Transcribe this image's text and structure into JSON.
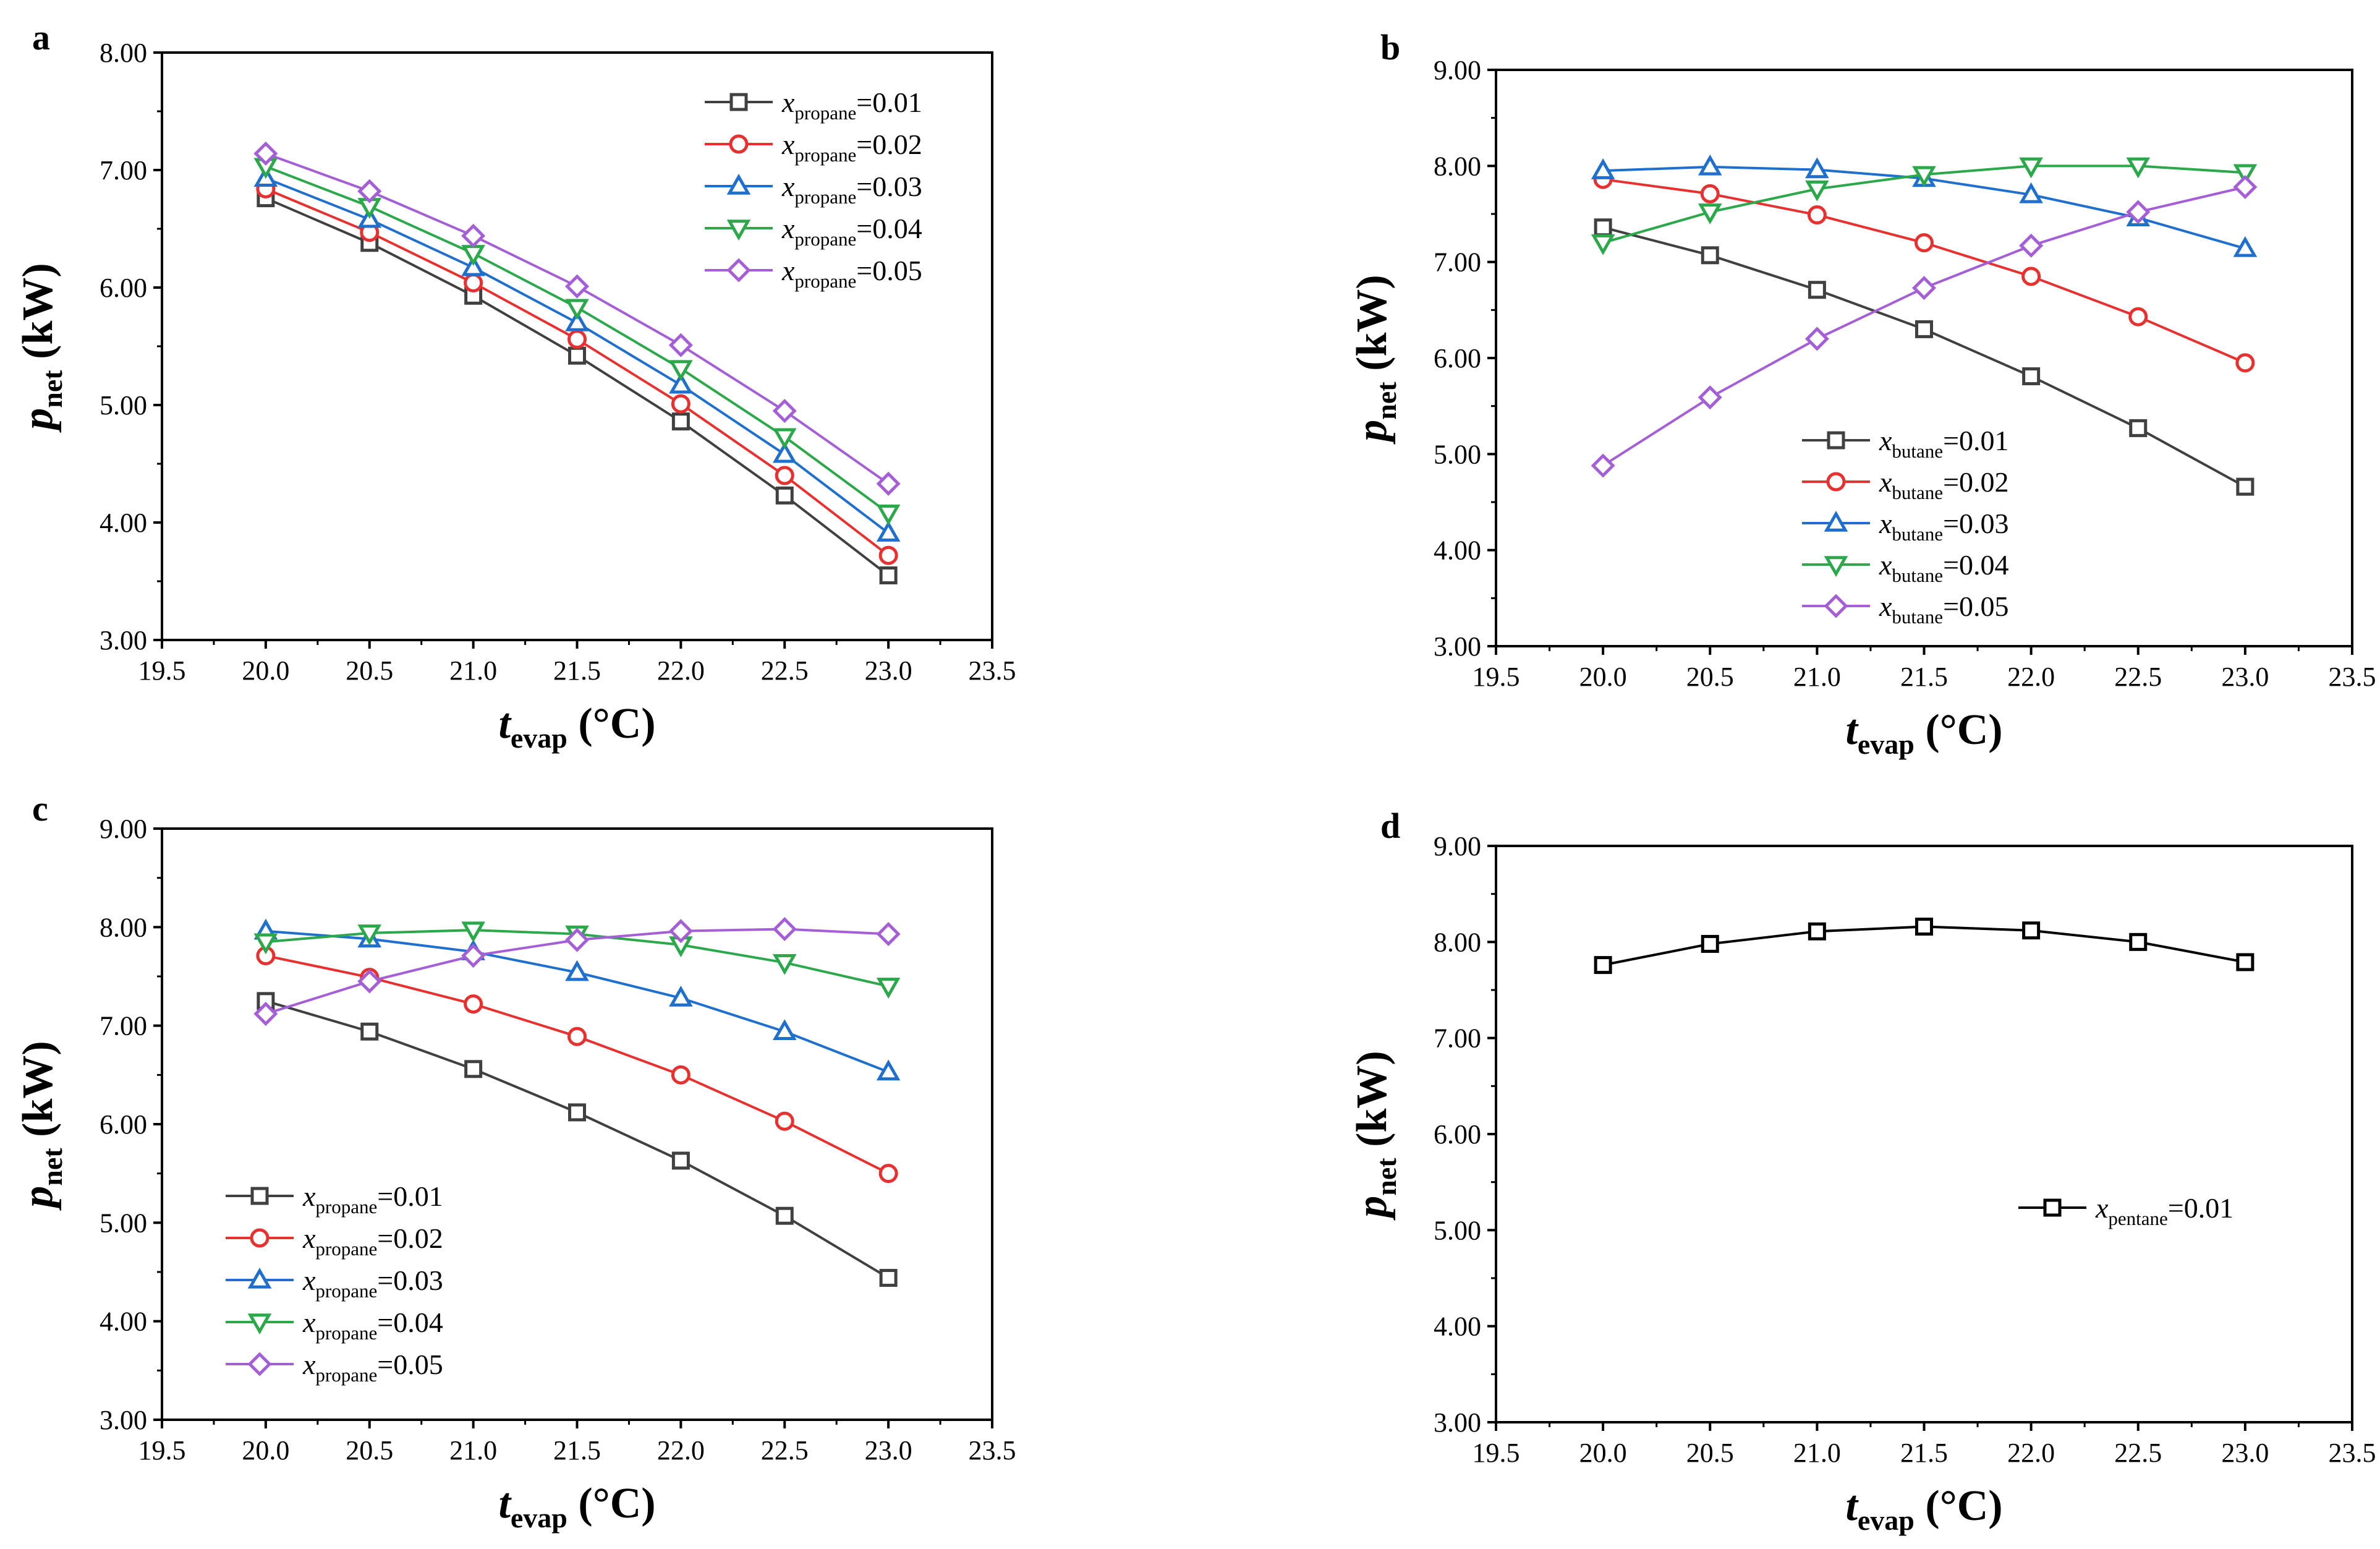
{
  "chart_data": [
    {
      "panel": "a",
      "type": "line",
      "xlabel": {
        "var": "t",
        "sub": "evap",
        "unit": "(°C)"
      },
      "ylabel": {
        "var": "p",
        "sub": "net",
        "unit": "(kW)"
      },
      "xlim": [
        19.5,
        23.5
      ],
      "ylim": [
        3.0,
        8.0
      ],
      "xticks": [
        "19.5",
        "20.0",
        "20.5",
        "21.0",
        "21.5",
        "22.0",
        "22.5",
        "23.0",
        "23.5"
      ],
      "yticks": [
        "3.00",
        "4.00",
        "5.00",
        "6.00",
        "7.00",
        "8.00"
      ],
      "grid": false,
      "legend_position": "top-right",
      "x": [
        20.0,
        20.5,
        21.0,
        21.5,
        22.0,
        22.5,
        23.0
      ],
      "series": [
        {
          "name": "x_propane=0.01",
          "var": "x",
          "sub": "propane",
          "val": "=0.01",
          "color": "#404040",
          "marker": "square",
          "values": [
            6.76,
            6.38,
            5.93,
            5.42,
            4.86,
            4.23,
            3.55
          ]
        },
        {
          "name": "x_propane=0.02",
          "var": "x",
          "sub": "propane",
          "val": "=0.02",
          "color": "#e8302f",
          "marker": "circle",
          "values": [
            6.84,
            6.47,
            6.04,
            5.56,
            5.01,
            4.4,
            3.72
          ]
        },
        {
          "name": "x_propane=0.03",
          "var": "x",
          "sub": "propane",
          "val": "=0.03",
          "color": "#1f6fcf",
          "marker": "triangle-up",
          "values": [
            6.93,
            6.58,
            6.17,
            5.7,
            5.17,
            4.58,
            3.91
          ]
        },
        {
          "name": "x_propane=0.04",
          "var": "x",
          "sub": "propane",
          "val": "=0.04",
          "color": "#2aa84a",
          "marker": "triangle-down",
          "values": [
            7.03,
            6.69,
            6.29,
            5.83,
            5.31,
            4.73,
            4.08
          ]
        },
        {
          "name": "x_propane=0.05",
          "var": "x",
          "sub": "propane",
          "val": "=0.05",
          "color": "#a55fd6",
          "marker": "diamond",
          "values": [
            7.14,
            6.82,
            6.44,
            6.01,
            5.51,
            4.95,
            4.33
          ]
        }
      ]
    },
    {
      "panel": "b",
      "type": "line",
      "xlabel": {
        "var": "t",
        "sub": "evap",
        "unit": "(°C)"
      },
      "ylabel": {
        "var": "p",
        "sub": "net",
        "unit": "(kW)"
      },
      "xlim": [
        19.5,
        23.5
      ],
      "ylim": [
        3.0,
        9.0
      ],
      "xticks": [
        "19.5",
        "20.0",
        "20.5",
        "21.0",
        "21.5",
        "22.0",
        "22.5",
        "23.0",
        "23.5"
      ],
      "yticks": [
        "3.00",
        "4.00",
        "5.00",
        "6.00",
        "7.00",
        "8.00",
        "9.00"
      ],
      "grid": false,
      "legend_position": "bottom-center",
      "x": [
        20.0,
        20.5,
        21.0,
        21.5,
        22.0,
        22.5,
        23.0
      ],
      "series": [
        {
          "name": "x_butane=0.01",
          "var": "x",
          "sub": "butane",
          "val": "=0.01",
          "color": "#404040",
          "marker": "square",
          "values": [
            7.36,
            7.07,
            6.71,
            6.3,
            5.81,
            5.27,
            4.66
          ]
        },
        {
          "name": "x_butane=0.02",
          "var": "x",
          "sub": "butane",
          "val": "=0.02",
          "color": "#e8302f",
          "marker": "circle",
          "values": [
            7.86,
            7.71,
            7.49,
            7.2,
            6.85,
            6.43,
            5.95
          ]
        },
        {
          "name": "x_butane=0.03",
          "var": "x",
          "sub": "butane",
          "val": "=0.03",
          "color": "#1f6fcf",
          "marker": "triangle-up",
          "values": [
            7.95,
            7.99,
            7.96,
            7.87,
            7.7,
            7.46,
            7.14
          ]
        },
        {
          "name": "x_butane=0.04",
          "var": "x",
          "sub": "butane",
          "val": "=0.04",
          "color": "#2aa84a",
          "marker": "triangle-down",
          "values": [
            7.2,
            7.52,
            7.76,
            7.91,
            8.0,
            8.0,
            7.93
          ]
        },
        {
          "name": "x_butane=0.05",
          "var": "x",
          "sub": "butane",
          "val": "=0.05",
          "color": "#a55fd6",
          "marker": "diamond",
          "values": [
            4.88,
            5.59,
            6.2,
            6.73,
            7.17,
            7.52,
            7.78
          ]
        }
      ]
    },
    {
      "panel": "c",
      "type": "line",
      "xlabel": {
        "var": "t",
        "sub": "evap",
        "unit": "(°C)"
      },
      "ylabel": {
        "var": "p",
        "sub": "net",
        "unit": "(kW)"
      },
      "xlim": [
        19.5,
        23.5
      ],
      "ylim": [
        3.0,
        9.0
      ],
      "xticks": [
        "19.5",
        "20.0",
        "20.5",
        "21.0",
        "21.5",
        "22.0",
        "22.5",
        "23.0",
        "23.5"
      ],
      "yticks": [
        "3.00",
        "4.00",
        "5.00",
        "6.00",
        "7.00",
        "8.00",
        "9.00"
      ],
      "grid": false,
      "legend_position": "bottom-left",
      "x": [
        20.0,
        20.5,
        21.0,
        21.5,
        22.0,
        22.5,
        23.0
      ],
      "series": [
        {
          "name": "x_propane=0.01",
          "var": "x",
          "sub": "propane",
          "val": "=0.01",
          "color": "#404040",
          "marker": "square",
          "values": [
            7.25,
            6.94,
            6.56,
            6.12,
            5.63,
            5.07,
            4.44
          ]
        },
        {
          "name": "x_propane=0.02",
          "var": "x",
          "sub": "propane",
          "val": "=0.02",
          "color": "#e8302f",
          "marker": "circle",
          "values": [
            7.71,
            7.49,
            7.22,
            6.89,
            6.5,
            6.03,
            5.5
          ]
        },
        {
          "name": "x_propane=0.03",
          "var": "x",
          "sub": "propane",
          "val": "=0.03",
          "color": "#1f6fcf",
          "marker": "triangle-up",
          "values": [
            7.96,
            7.88,
            7.75,
            7.54,
            7.28,
            6.94,
            6.53
          ]
        },
        {
          "name": "x_propane=0.04",
          "var": "x",
          "sub": "propane",
          "val": "=0.04",
          "color": "#2aa84a",
          "marker": "triangle-down",
          "values": [
            7.85,
            7.94,
            7.97,
            7.93,
            7.82,
            7.64,
            7.4
          ]
        },
        {
          "name": "x_propane=0.05",
          "var": "x",
          "sub": "propane",
          "val": "=0.05",
          "color": "#a55fd6",
          "marker": "diamond",
          "values": [
            7.12,
            7.45,
            7.71,
            7.87,
            7.96,
            7.98,
            7.93
          ]
        }
      ]
    },
    {
      "panel": "d",
      "type": "line",
      "xlabel": {
        "var": "t",
        "sub": "evap",
        "unit": "(°C)"
      },
      "ylabel": {
        "var": "p",
        "sub": "net",
        "unit": "(kW)"
      },
      "xlim": [
        19.5,
        23.5
      ],
      "ylim": [
        3.0,
        9.0
      ],
      "xticks": [
        "19.5",
        "20.0",
        "20.5",
        "21.0",
        "21.5",
        "22.0",
        "22.5",
        "23.0",
        "23.5"
      ],
      "yticks": [
        "3.00",
        "4.00",
        "5.00",
        "6.00",
        "7.00",
        "8.00",
        "9.00"
      ],
      "grid": false,
      "legend_position": "center-right",
      "x": [
        20.0,
        20.5,
        21.0,
        21.5,
        22.0,
        22.5,
        23.0
      ],
      "series": [
        {
          "name": "x_pentane=0.01",
          "var": "x",
          "sub": "pentane",
          "val": "=0.01",
          "color": "#000000",
          "marker": "square",
          "values": [
            7.76,
            7.98,
            8.11,
            8.16,
            8.12,
            8.0,
            7.79
          ]
        }
      ]
    }
  ]
}
